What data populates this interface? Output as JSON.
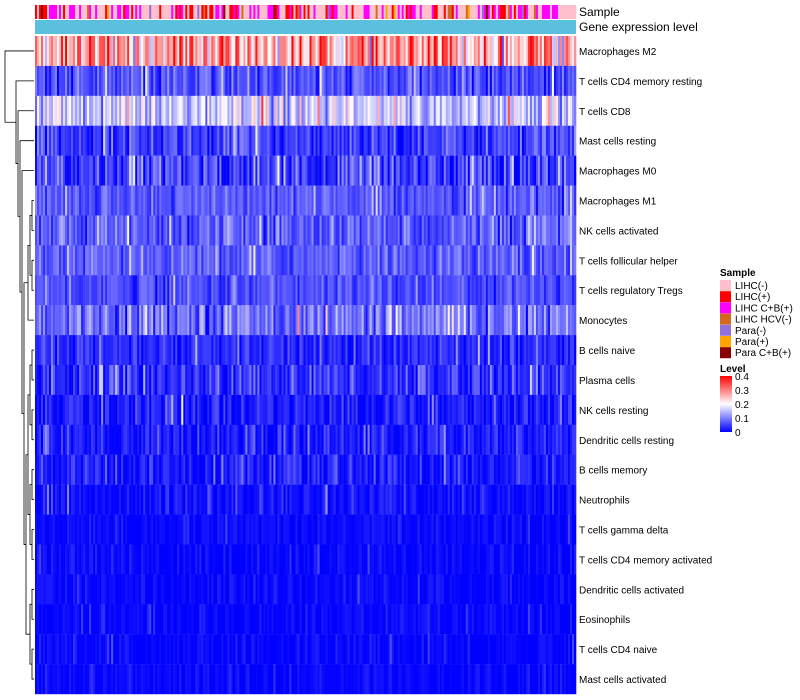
{
  "chart_data": {
    "type": "heatmap",
    "title": "",
    "annotations": [
      {
        "name": "Sample",
        "label": "Sample"
      },
      {
        "name": "Gene expression level",
        "label": "Gene expression level",
        "color": "#5bc0de"
      }
    ],
    "rows": [
      {
        "label": "Macrophages M2",
        "mean": 0.27,
        "spread": 0.12
      },
      {
        "label": "T cells CD4 memory resting",
        "mean": 0.06,
        "spread": 0.05
      },
      {
        "label": "T cells CD8",
        "mean": 0.15,
        "spread": 0.08
      },
      {
        "label": "Mast cells resting",
        "mean": 0.05,
        "spread": 0.05
      },
      {
        "label": "Macrophages M0",
        "mean": 0.05,
        "spread": 0.07
      },
      {
        "label": "Macrophages M1",
        "mean": 0.07,
        "spread": 0.04
      },
      {
        "label": "NK cells activated",
        "mean": 0.07,
        "spread": 0.05
      },
      {
        "label": "T cells follicular helper",
        "mean": 0.07,
        "spread": 0.04
      },
      {
        "label": "T cells regulatory  Tregs",
        "mean": 0.06,
        "spread": 0.04
      },
      {
        "label": "Monocytes",
        "mean": 0.09,
        "spread": 0.06
      },
      {
        "label": "B cells naive",
        "mean": 0.03,
        "spread": 0.04
      },
      {
        "label": "Plasma cells",
        "mean": 0.04,
        "spread": 0.05
      },
      {
        "label": "NK cells resting",
        "mean": 0.02,
        "spread": 0.04
      },
      {
        "label": "Dendritic cells resting",
        "mean": 0.02,
        "spread": 0.04
      },
      {
        "label": "B cells memory",
        "mean": 0.02,
        "spread": 0.04
      },
      {
        "label": "Neutrophils",
        "mean": 0.01,
        "spread": 0.03
      },
      {
        "label": "T cells gamma delta",
        "mean": 0.005,
        "spread": 0.02
      },
      {
        "label": "T cells CD4 memory activated",
        "mean": 0.005,
        "spread": 0.02
      },
      {
        "label": "Dendritic cells activated",
        "mean": 0.005,
        "spread": 0.02
      },
      {
        "label": "Eosinophils",
        "mean": 0.003,
        "spread": 0.02
      },
      {
        "label": "T cells CD4 naive",
        "mean": 0.002,
        "spread": 0.02
      },
      {
        "label": "Mast cells activated",
        "mean": 0.005,
        "spread": 0.02
      }
    ],
    "n_samples": 270,
    "sample_groups": [
      {
        "label": "LIHC(-)",
        "color": "#ffc0cb"
      },
      {
        "label": "LIHC(+)",
        "color": "#ff0000"
      },
      {
        "label": "LIHC C+B(+)",
        "color": "#ff00ff"
      },
      {
        "label": "LIHC HCV(-)",
        "color": "#d2691e"
      },
      {
        "label": "Para(-)",
        "color": "#9370db"
      },
      {
        "label": "Para(+)",
        "color": "#ffa500"
      },
      {
        "label": "Para C+B(+)",
        "color": "#8b0000"
      }
    ],
    "sample_group_weights": [
      0.5,
      0.18,
      0.22,
      0.04,
      0.03,
      0.02,
      0.01
    ],
    "color_scale": {
      "min": 0,
      "max": 0.4,
      "stops": [
        {
          "value": 0,
          "color": "#0000ff"
        },
        {
          "value": 0.2,
          "color": "#ffffff"
        },
        {
          "value": 0.4,
          "color": "#ff0000"
        }
      ]
    },
    "legends": {
      "sample_title": "Sample",
      "level_title": "Level",
      "level_ticks": [
        "0.4",
        "0.3",
        "0.2",
        "0.1",
        "0"
      ]
    }
  }
}
